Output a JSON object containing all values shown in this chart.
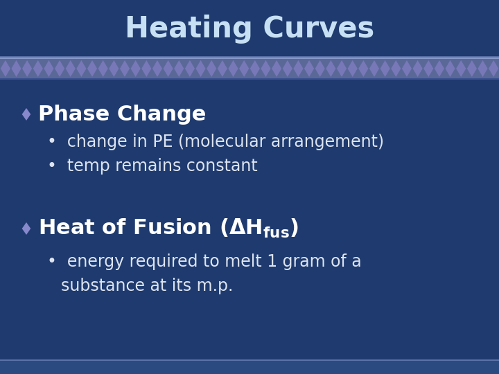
{
  "title": "Heating Curves",
  "title_color": "#c8e0f4",
  "bg_color": "#1e3a6e",
  "border_color": "#5a72a8",
  "diamond_color": "#8888cc",
  "text_color": "#dde4f0",
  "bold_text_color": "#ffffff",
  "footer_stripe_color": "#2a4a80",
  "zigzag_bg": "#5a6898",
  "zigzag_diamond_color": "#7878b8",
  "zigzag_diamond_dark": "#4a5888",
  "zigzag_border_top": "#8898c8",
  "zigzag_border_bot": "#3a5090",
  "bullet1_heading": "Phase Change",
  "bullet1_sub1": "change in PE (molecular arrangement)",
  "bullet1_sub2": "temp remains constant",
  "bullet2_heading": "Heat of Fusion ",
  "bullet2_sub1_line1": "energy required to melt 1 gram of a",
  "bullet2_sub1_line2": "substance at its m.p."
}
